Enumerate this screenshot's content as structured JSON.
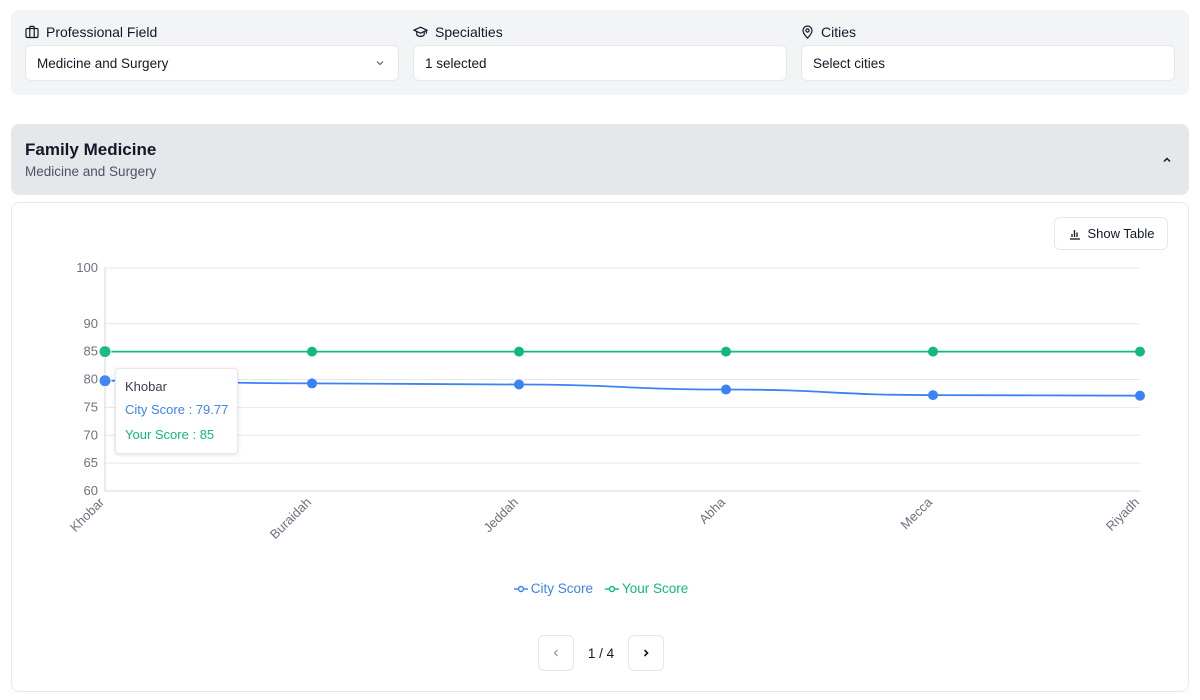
{
  "filters": {
    "professional_field": {
      "label": "Professional Field",
      "value": "Medicine and Surgery"
    },
    "specialties": {
      "label": "Specialties",
      "value": "1 selected"
    },
    "cities": {
      "label": "Cities",
      "placeholder": "Select cities"
    }
  },
  "specialty": {
    "title": "Family Medicine",
    "subtitle": "Medicine and Surgery"
  },
  "show_table_label": "Show Table",
  "tooltip": {
    "city": "Khobar",
    "city_score_label": "City Score",
    "city_score_value": "79.77",
    "your_score_label": "Your Score",
    "your_score_value": "85"
  },
  "chart_data": {
    "type": "line",
    "x": [
      "Khobar",
      "Buraidah",
      "Jeddah",
      "Abha",
      "Mecca",
      "Riyadh"
    ],
    "series": [
      {
        "name": "City Score",
        "color": "#3b82f6",
        "values": [
          79.77,
          79.3,
          79.1,
          78.2,
          77.2,
          77.1
        ]
      },
      {
        "name": "Your Score",
        "color": "#10b981",
        "values": [
          85,
          85,
          85,
          85,
          85,
          85
        ]
      }
    ],
    "yticks": [
      60,
      65,
      70,
      75,
      80,
      85,
      90,
      100
    ],
    "ylim": [
      60,
      100
    ],
    "legend": "bottom",
    "grid": true,
    "active_point": "Khobar"
  },
  "pagination": {
    "current": 1,
    "total": 4,
    "text": "1 / 4"
  },
  "colors": {
    "city": "#3b82f6",
    "your": "#10b981"
  }
}
